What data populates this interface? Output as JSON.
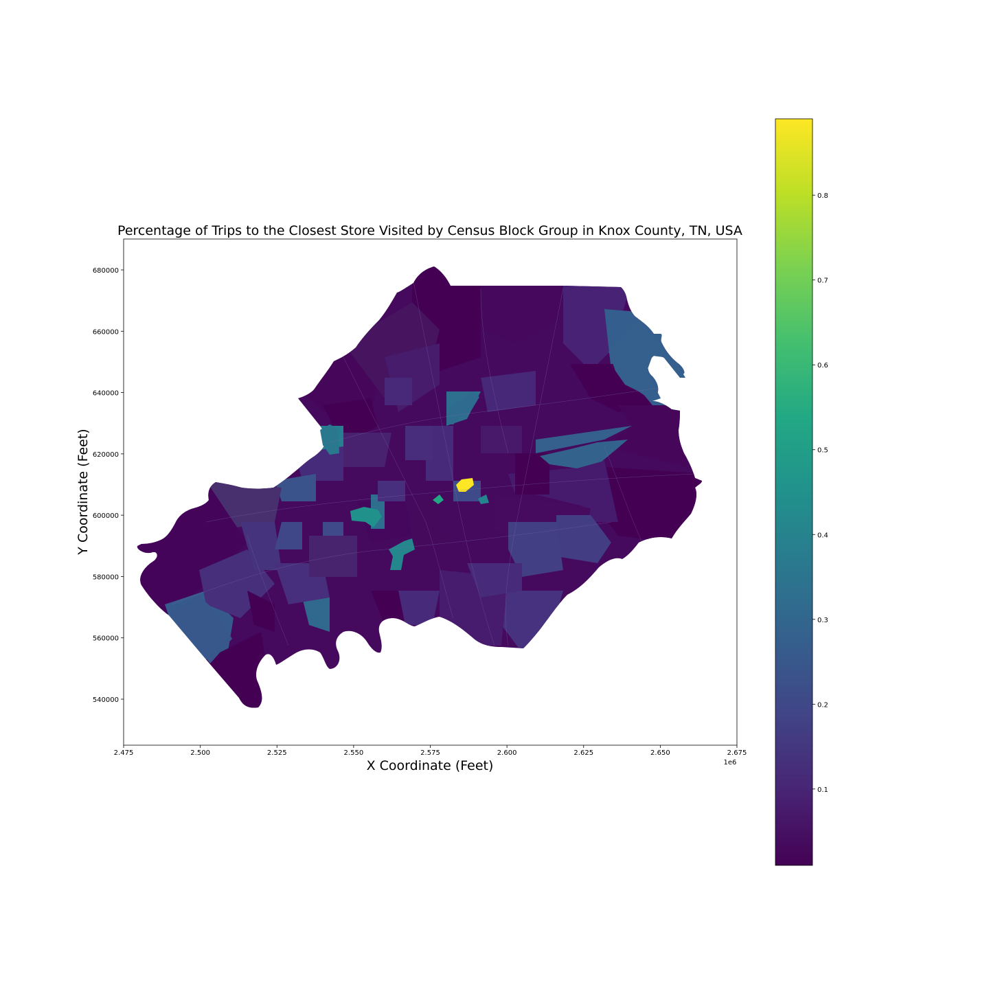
{
  "title": "Percentage of Trips to the Closest Store Visited by Census Block Group in Knox County, TN, USA",
  "xlabel": "X Coordinate (Feet)",
  "ylabel": "Y Coordinate (Feet)",
  "x_offset_label": "1e6",
  "x_ticks": [
    "2.475",
    "2.500",
    "2.525",
    "2.550",
    "2.575",
    "2.600",
    "2.625",
    "2.650",
    "2.675"
  ],
  "y_ticks": [
    "540000",
    "560000",
    "580000",
    "600000",
    "620000",
    "640000",
    "660000",
    "680000"
  ],
  "colorbar_ticks": [
    "0.1",
    "0.2",
    "0.3",
    "0.4",
    "0.5",
    "0.6",
    "0.7",
    "0.8"
  ],
  "colormap": "viridis",
  "colors": {
    "viridis_low": "#440154",
    "viridis_mid": "#21918c",
    "viridis_high": "#fde725"
  },
  "chart_data": {
    "type": "choropleth",
    "title": "Percentage of Trips to the Closest Store Visited by Census Block Group in Knox County, TN, USA",
    "xlabel": "X Coordinate (Feet)",
    "ylabel": "Y Coordinate (Feet)",
    "xlim": [
      2475000,
      2675000
    ],
    "ylim": [
      525000,
      690000
    ],
    "color_range": [
      0.01,
      0.89
    ],
    "colormap": "viridis",
    "regions_notable": [
      {
        "x": 2587000,
        "y": 609500,
        "value": 0.89
      },
      {
        "x": 2552000,
        "y": 599500,
        "value": 0.48
      },
      {
        "x": 2565000,
        "y": 585000,
        "value": 0.44
      },
      {
        "x": 2542000,
        "y": 623000,
        "value": 0.4
      },
      {
        "x": 2577000,
        "y": 604000,
        "value": 0.52
      },
      {
        "x": 2592000,
        "y": 605000,
        "value": 0.4
      },
      {
        "x": 2650000,
        "y": 645000,
        "value": 0.25
      },
      {
        "x": 2620000,
        "y": 619000,
        "value": 0.25
      },
      {
        "x": 2500000,
        "y": 560000,
        "value": 0.26
      },
      {
        "x": 2580000,
        "y": 633000,
        "value": 0.3
      }
    ]
  }
}
